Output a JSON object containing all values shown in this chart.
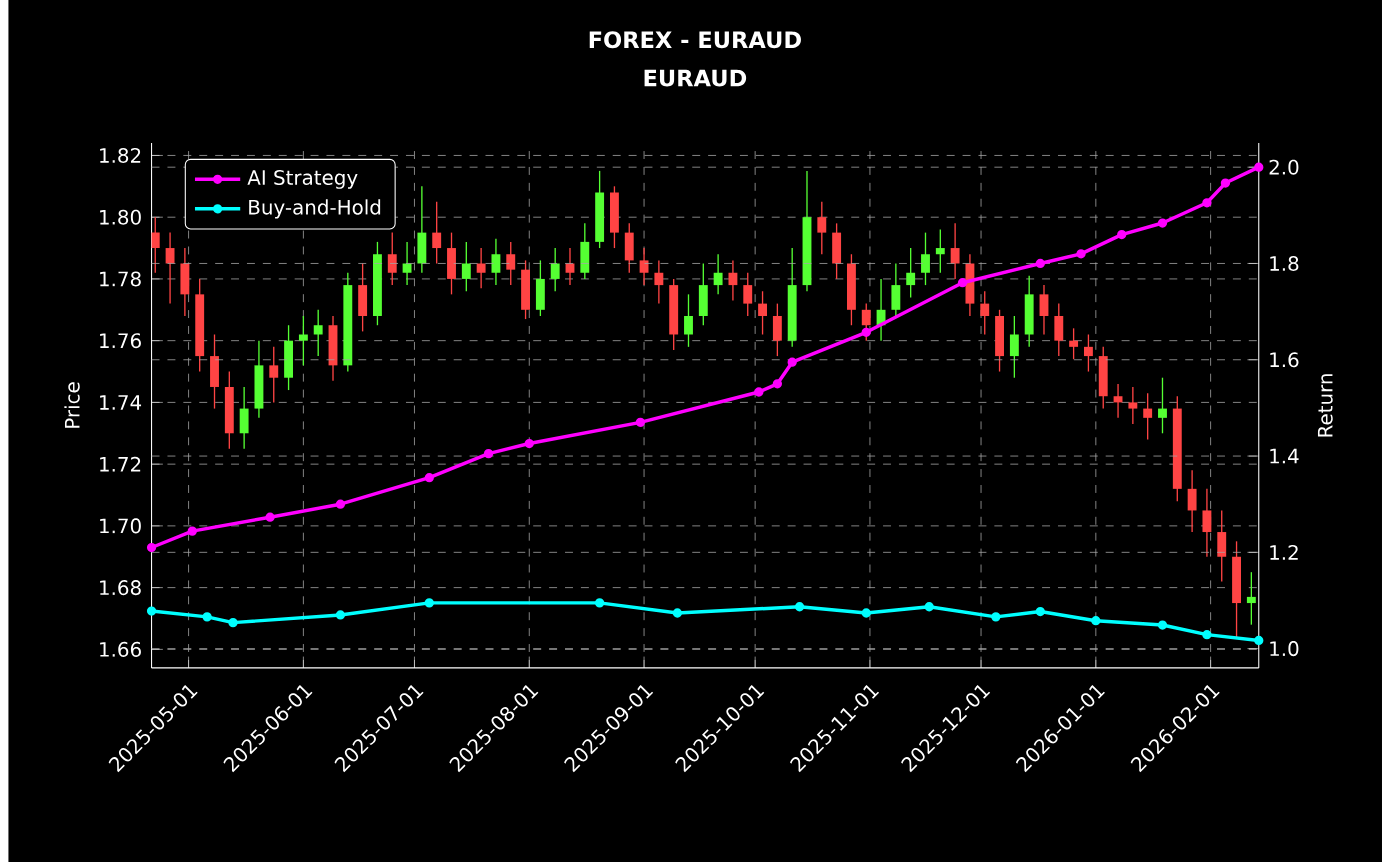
{
  "chart_data": {
    "type": "candlestick",
    "title": "FOREX - EURAUD",
    "subtitle": "EURAUD",
    "xlabel": null,
    "ylabel": "Price",
    "y2label": "Return",
    "x": [
      "2025-04-22",
      "2025-04-26",
      "2025-04-30",
      "2025-05-04",
      "2025-05-08",
      "2025-05-12",
      "2025-05-16",
      "2025-05-20",
      "2025-05-24",
      "2025-05-28",
      "2025-06-01",
      "2025-06-05",
      "2025-06-09",
      "2025-06-13",
      "2025-06-17",
      "2025-06-21",
      "2025-06-25",
      "2025-06-29",
      "2025-07-03",
      "2025-07-07",
      "2025-07-11",
      "2025-07-15",
      "2025-07-19",
      "2025-07-23",
      "2025-07-27",
      "2025-07-31",
      "2025-08-04",
      "2025-08-08",
      "2025-08-12",
      "2025-08-16",
      "2025-08-20",
      "2025-08-24",
      "2025-08-28",
      "2025-09-01",
      "2025-09-05",
      "2025-09-09",
      "2025-09-13",
      "2025-09-17",
      "2025-09-21",
      "2025-09-25",
      "2025-09-29",
      "2025-10-03",
      "2025-10-07",
      "2025-10-11",
      "2025-10-15",
      "2025-10-19",
      "2025-10-23",
      "2025-10-27",
      "2025-10-31",
      "2025-11-04",
      "2025-11-08",
      "2025-11-12",
      "2025-11-16",
      "2025-11-20",
      "2025-11-24",
      "2025-11-28",
      "2025-12-02",
      "2025-12-06",
      "2025-12-10",
      "2025-12-14",
      "2025-12-18",
      "2025-12-22",
      "2025-12-26",
      "2025-12-30",
      "2026-01-03",
      "2026-01-07",
      "2026-01-11",
      "2026-01-15",
      "2026-01-19",
      "2026-01-23",
      "2026-01-27",
      "2026-01-31",
      "2026-02-04",
      "2026-02-08",
      "2026-02-12"
    ],
    "ohlc": [
      [
        1.795,
        1.8,
        1.782,
        1.79
      ],
      [
        1.79,
        1.795,
        1.772,
        1.785
      ],
      [
        1.785,
        1.79,
        1.768,
        1.775
      ],
      [
        1.775,
        1.78,
        1.75,
        1.755
      ],
      [
        1.755,
        1.762,
        1.738,
        1.745
      ],
      [
        1.745,
        1.75,
        1.725,
        1.73
      ],
      [
        1.73,
        1.745,
        1.725,
        1.738
      ],
      [
        1.738,
        1.76,
        1.735,
        1.752
      ],
      [
        1.752,
        1.758,
        1.74,
        1.748
      ],
      [
        1.748,
        1.765,
        1.744,
        1.76
      ],
      [
        1.76,
        1.768,
        1.752,
        1.762
      ],
      [
        1.762,
        1.77,
        1.755,
        1.765
      ],
      [
        1.765,
        1.768,
        1.747,
        1.752
      ],
      [
        1.752,
        1.782,
        1.75,
        1.778
      ],
      [
        1.778,
        1.785,
        1.763,
        1.768
      ],
      [
        1.768,
        1.792,
        1.765,
        1.788
      ],
      [
        1.788,
        1.795,
        1.778,
        1.782
      ],
      [
        1.782,
        1.792,
        1.778,
        1.785
      ],
      [
        1.785,
        1.81,
        1.782,
        1.795
      ],
      [
        1.795,
        1.805,
        1.785,
        1.79
      ],
      [
        1.79,
        1.795,
        1.775,
        1.78
      ],
      [
        1.78,
        1.792,
        1.776,
        1.785
      ],
      [
        1.785,
        1.79,
        1.777,
        1.782
      ],
      [
        1.782,
        1.793,
        1.778,
        1.788
      ],
      [
        1.788,
        1.792,
        1.778,
        1.783
      ],
      [
        1.783,
        1.786,
        1.767,
        1.77
      ],
      [
        1.77,
        1.786,
        1.768,
        1.78
      ],
      [
        1.78,
        1.79,
        1.776,
        1.785
      ],
      [
        1.785,
        1.79,
        1.778,
        1.782
      ],
      [
        1.782,
        1.798,
        1.78,
        1.792
      ],
      [
        1.792,
        1.815,
        1.79,
        1.808
      ],
      [
        1.808,
        1.81,
        1.79,
        1.795
      ],
      [
        1.795,
        1.798,
        1.782,
        1.786
      ],
      [
        1.786,
        1.79,
        1.778,
        1.782
      ],
      [
        1.782,
        1.786,
        1.772,
        1.778
      ],
      [
        1.778,
        1.78,
        1.757,
        1.762
      ],
      [
        1.762,
        1.775,
        1.758,
        1.768
      ],
      [
        1.768,
        1.785,
        1.765,
        1.778
      ],
      [
        1.778,
        1.788,
        1.775,
        1.782
      ],
      [
        1.782,
        1.786,
        1.773,
        1.778
      ],
      [
        1.778,
        1.782,
        1.768,
        1.772
      ],
      [
        1.772,
        1.776,
        1.762,
        1.768
      ],
      [
        1.768,
        1.772,
        1.755,
        1.76
      ],
      [
        1.76,
        1.79,
        1.758,
        1.778
      ],
      [
        1.778,
        1.815,
        1.776,
        1.8
      ],
      [
        1.8,
        1.805,
        1.788,
        1.795
      ],
      [
        1.795,
        1.798,
        1.78,
        1.785
      ],
      [
        1.785,
        1.788,
        1.765,
        1.77
      ],
      [
        1.77,
        1.772,
        1.76,
        1.765
      ],
      [
        1.765,
        1.78,
        1.76,
        1.77
      ],
      [
        1.77,
        1.785,
        1.768,
        1.778
      ],
      [
        1.778,
        1.79,
        1.774,
        1.782
      ],
      [
        1.782,
        1.795,
        1.778,
        1.788
      ],
      [
        1.788,
        1.796,
        1.782,
        1.79
      ],
      [
        1.79,
        1.798,
        1.78,
        1.785
      ],
      [
        1.785,
        1.788,
        1.768,
        1.772
      ],
      [
        1.772,
        1.776,
        1.762,
        1.768
      ],
      [
        1.768,
        1.77,
        1.75,
        1.755
      ],
      [
        1.755,
        1.768,
        1.748,
        1.762
      ],
      [
        1.762,
        1.781,
        1.758,
        1.775
      ],
      [
        1.775,
        1.778,
        1.762,
        1.768
      ],
      [
        1.768,
        1.772,
        1.755,
        1.76
      ],
      [
        1.76,
        1.764,
        1.754,
        1.758
      ],
      [
        1.758,
        1.762,
        1.75,
        1.755
      ],
      [
        1.755,
        1.758,
        1.738,
        1.742
      ],
      [
        1.742,
        1.746,
        1.735,
        1.74
      ],
      [
        1.74,
        1.745,
        1.733,
        1.738
      ],
      [
        1.738,
        1.743,
        1.728,
        1.735
      ],
      [
        1.735,
        1.748,
        1.73,
        1.738
      ],
      [
        1.738,
        1.742,
        1.708,
        1.712
      ],
      [
        1.712,
        1.718,
        1.698,
        1.705
      ],
      [
        1.705,
        1.712,
        1.69,
        1.698
      ],
      [
        1.698,
        1.705,
        1.682,
        1.69
      ],
      [
        1.69,
        1.695,
        1.664,
        1.675
      ],
      [
        1.675,
        1.685,
        1.668,
        1.677
      ]
    ],
    "series": [
      {
        "name": "AI Strategy",
        "type": "line",
        "axis": "y2",
        "color": "#ff00ff",
        "x": [
          "2025-04-21",
          "2025-05-02",
          "2025-05-23",
          "2025-06-11",
          "2025-07-05",
          "2025-07-21",
          "2025-08-01",
          "2025-08-31",
          "2025-10-02",
          "2025-10-07",
          "2025-10-11",
          "2025-10-31",
          "2025-11-26",
          "2025-12-17",
          "2025-12-28",
          "2026-01-08",
          "2026-01-19",
          "2026-01-31",
          "2026-02-05",
          "2026-02-14"
        ],
        "values": [
          1.21,
          1.244,
          1.273,
          1.3,
          1.355,
          1.405,
          1.426,
          1.47,
          1.533,
          1.55,
          1.595,
          1.657,
          1.76,
          1.8,
          1.82,
          1.86,
          1.884,
          1.926,
          1.967,
          2.0
        ]
      },
      {
        "name": "Buy-and-Hold",
        "type": "line",
        "axis": "y2",
        "color": "#00ffff",
        "x": [
          "2025-04-21",
          "2025-05-06",
          "2025-05-13",
          "2025-06-11",
          "2025-07-05",
          "2025-08-20",
          "2025-09-10",
          "2025-10-13",
          "2025-10-31",
          "2025-11-17",
          "2025-12-05",
          "2025-12-17",
          "2026-01-01",
          "2026-01-19",
          "2026-01-31",
          "2026-02-14"
        ],
        "values": [
          1.078,
          1.066,
          1.054,
          1.07,
          1.095,
          1.095,
          1.074,
          1.087,
          1.074,
          1.087,
          1.066,
          1.077,
          1.058,
          1.049,
          1.029,
          1.017
        ]
      }
    ],
    "xlim": [
      "2025-04-21",
      "2026-02-14"
    ],
    "xticks": [
      "2025-05-01",
      "2025-06-01",
      "2025-07-01",
      "2025-08-01",
      "2025-09-01",
      "2025-10-01",
      "2025-11-01",
      "2025-12-01",
      "2026-01-01",
      "2026-02-01"
    ],
    "ylim": [
      1.654,
      1.824
    ],
    "yticks": [
      {
        "value": 1.66,
        "label": "1.66"
      },
      {
        "value": 1.68,
        "label": "1.68"
      },
      {
        "value": 1.7,
        "label": "1.70"
      },
      {
        "value": 1.72,
        "label": "1.72"
      },
      {
        "value": 1.74,
        "label": "1.74"
      },
      {
        "value": 1.76,
        "label": "1.76"
      },
      {
        "value": 1.78,
        "label": "1.78"
      },
      {
        "value": 1.8,
        "label": "1.80"
      },
      {
        "value": 1.82,
        "label": "1.82"
      }
    ],
    "y2lim": [
      0.96,
      2.05
    ],
    "y2ticks": [
      {
        "value": 1.0,
        "label": "1.0"
      },
      {
        "value": 1.2,
        "label": "1.2"
      },
      {
        "value": 1.4,
        "label": "1.4"
      },
      {
        "value": 1.6,
        "label": "1.6"
      },
      {
        "value": 1.8,
        "label": "1.8"
      },
      {
        "value": 2.0,
        "label": "2.0"
      }
    ],
    "grid": true,
    "legend": "top left",
    "marker": "circle",
    "line_style": "solid"
  }
}
